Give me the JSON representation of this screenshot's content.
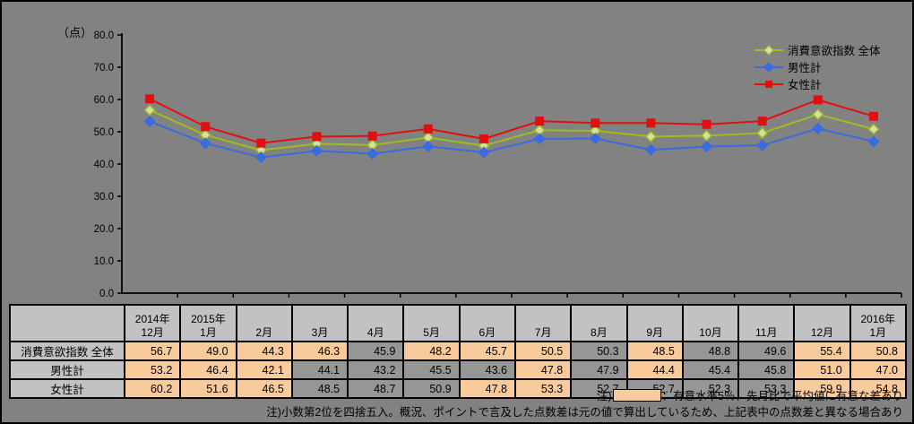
{
  "chart": {
    "unit_label": "（点）",
    "y_ticks": [
      "0.0",
      "10.0",
      "20.0",
      "30.0",
      "40.0",
      "50.0",
      "60.0",
      "70.0",
      "80.0"
    ]
  },
  "chart_data": {
    "type": "line",
    "title": "",
    "xlabel": "",
    "ylabel": "（点）",
    "ylim": [
      0,
      80
    ],
    "grid": false,
    "legend_position": "top-right",
    "categories": [
      "2014年12月",
      "2015年1月",
      "2月",
      "3月",
      "4月",
      "5月",
      "6月",
      "7月",
      "8月",
      "9月",
      "10月",
      "11月",
      "12月",
      "2016年1月"
    ],
    "series": [
      {
        "name": "消費意欲指数 全体",
        "color": "#9CBE1E",
        "marker": "diamond",
        "marker_fill": "#D6DFA6",
        "values": [
          56.7,
          49.0,
          44.3,
          46.3,
          45.9,
          48.2,
          45.7,
          50.5,
          50.3,
          48.5,
          48.8,
          49.6,
          55.4,
          50.8
        ]
      },
      {
        "name": "男性計",
        "color": "#3A6BDF",
        "marker": "diamond",
        "marker_fill": "#3A6BDF",
        "values": [
          53.2,
          46.4,
          42.1,
          44.1,
          43.2,
          45.5,
          43.6,
          47.8,
          47.9,
          44.4,
          45.4,
          45.8,
          51.0,
          47.0
        ]
      },
      {
        "name": "女性計",
        "color": "#E01010",
        "marker": "square",
        "marker_fill": "#E01010",
        "values": [
          60.2,
          51.6,
          46.5,
          48.5,
          48.7,
          50.9,
          47.8,
          53.3,
          52.7,
          52.7,
          52.3,
          53.3,
          59.9,
          54.8
        ]
      }
    ]
  },
  "table": {
    "corner_label": "",
    "columns": [
      "2014年\n12月",
      "2015年\n1月",
      "2月",
      "3月",
      "4月",
      "5月",
      "6月",
      "7月",
      "8月",
      "9月",
      "10月",
      "11月",
      "12月",
      "2016年\n1月"
    ],
    "rows": [
      {
        "label": "消費意欲指数 全体",
        "values": [
          "56.7",
          "49.0",
          "44.3",
          "46.3",
          "45.9",
          "48.2",
          "45.7",
          "50.5",
          "50.3",
          "48.5",
          "48.8",
          "49.6",
          "55.4",
          "50.8"
        ],
        "significant": [
          true,
          true,
          true,
          true,
          false,
          true,
          true,
          true,
          false,
          true,
          false,
          false,
          true,
          true
        ]
      },
      {
        "label": "男性計",
        "values": [
          "53.2",
          "46.4",
          "42.1",
          "44.1",
          "43.2",
          "45.5",
          "43.6",
          "47.8",
          "47.9",
          "44.4",
          "45.4",
          "45.8",
          "51.0",
          "47.0"
        ],
        "significant": [
          true,
          true,
          true,
          false,
          false,
          false,
          false,
          true,
          false,
          true,
          false,
          false,
          true,
          true
        ]
      },
      {
        "label": "女性計",
        "values": [
          "60.2",
          "51.6",
          "46.5",
          "48.5",
          "48.7",
          "50.9",
          "47.8",
          "53.3",
          "52.7",
          "52.7",
          "52.3",
          "53.3",
          "59.9",
          "54.8"
        ],
        "significant": [
          true,
          true,
          true,
          false,
          false,
          false,
          true,
          true,
          false,
          false,
          false,
          false,
          true,
          true
        ]
      }
    ]
  },
  "notes": {
    "note1_prefix": "注)",
    "note1_text": "：有意水準5％、先月比で平均値に有意な差あり",
    "note2": "注)小数第2位を四捨五入。概況、ポイントで言及した点数差は元の値で算出しているため、上記表中の点数差と異なる場合あり"
  },
  "colors": {
    "page_bg": "#828282",
    "table_header_bg": "#C2C2C2",
    "cell_highlight": "#F9CA9B",
    "cell_plain": "#969696",
    "axis": "#000000"
  }
}
